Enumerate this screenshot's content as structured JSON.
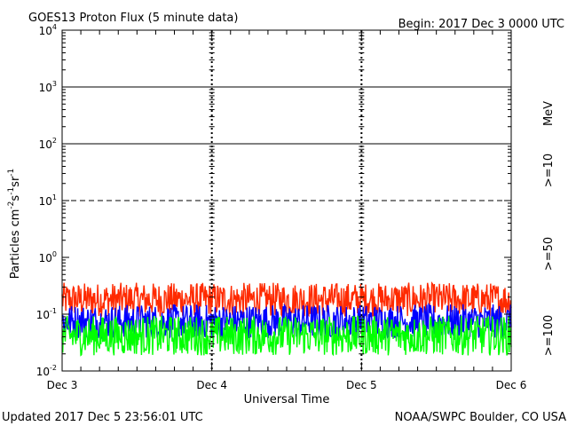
{
  "header": {
    "title": "GOES13 Proton Flux (5 minute data)",
    "begin": "Begin: 2017 Dec 3 0000 UTC"
  },
  "footer": {
    "updated": "Updated 2017 Dec  5 23:56:01 UTC",
    "credit": "NOAA/SWPC Boulder, CO USA"
  },
  "legend": {
    "unit": "MeV",
    "gt10": ">=10",
    "gt50": ">=50",
    "gt100": ">=100"
  },
  "colors": {
    "gt10": "#ff2a00",
    "gt50": "#0000ff",
    "gt100": "#00ff00",
    "axis": "#000000"
  },
  "chart_data": {
    "type": "line",
    "title": "GOES13 Proton Flux (5 minute data)",
    "xlabel": "Universal Time",
    "ylabel": "Particles cm-2 s-1 sr-1",
    "yscale": "log",
    "ylim": [
      0.01,
      10000
    ],
    "xlim_days": [
      0,
      3
    ],
    "x_ticks": [
      "Dec 3",
      "Dec 4",
      "Dec 5",
      "Dec 6"
    ],
    "y_ticks": [
      {
        "base": "10",
        "exp": "-2"
      },
      {
        "base": "10",
        "exp": "-1"
      },
      {
        "base": "10",
        "exp": "0"
      },
      {
        "base": "10",
        "exp": "1"
      },
      {
        "base": "10",
        "exp": "2"
      },
      {
        "base": "10",
        "exp": "3"
      },
      {
        "base": "10",
        "exp": "4"
      }
    ],
    "threshold_lines": [
      {
        "value": 10,
        "style": "dashed"
      },
      {
        "value": 100,
        "style": "solid"
      },
      {
        "value": 1000,
        "style": "solid"
      }
    ],
    "series": [
      {
        "name": ">=10 MeV",
        "color": "#ff2a00",
        "base": 0.18,
        "spread": 0.3,
        "points": 720
      },
      {
        "name": ">=50 MeV",
        "color": "#0000ff",
        "base": 0.075,
        "spread": 0.3,
        "points": 720
      },
      {
        "name": ">=100 MeV",
        "color": "#00ff00",
        "base": 0.042,
        "spread": 0.35,
        "points": 720
      }
    ]
  }
}
